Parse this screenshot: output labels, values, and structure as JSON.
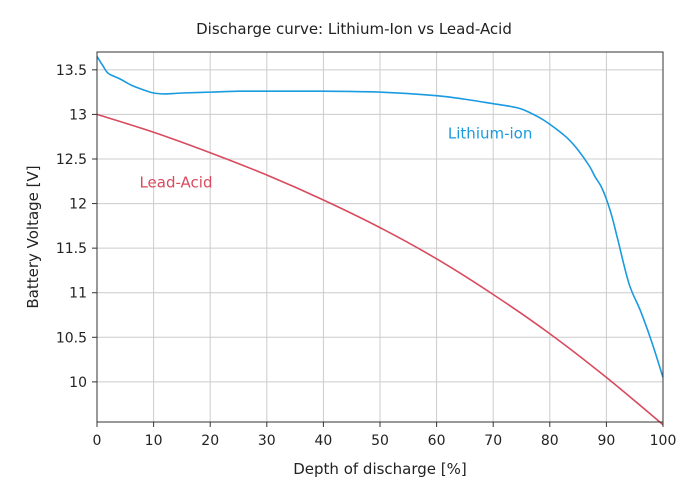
{
  "chart_data": {
    "type": "line",
    "title": "Discharge curve: Lithium-Ion vs Lead-Acid",
    "xlabel": "Depth of discharge [%]",
    "ylabel": "Battery Voltage [V]",
    "xlim": [
      0,
      100
    ],
    "ylim": [
      9.55,
      13.7
    ],
    "xticks": [
      0,
      10,
      20,
      30,
      40,
      50,
      60,
      70,
      80,
      90,
      100
    ],
    "xtick_labels": [
      "0",
      "10",
      "20",
      "30",
      "40",
      "50",
      "60",
      "70",
      "80",
      "90",
      "100"
    ],
    "yticks": [
      10,
      10.5,
      11,
      11.5,
      12,
      12.5,
      13,
      13.5
    ],
    "ytick_labels": [
      "10",
      "10.5",
      "11",
      "11.5",
      "12",
      "12.5",
      "13",
      "13.5"
    ],
    "grid": true,
    "series": [
      {
        "name": "Lithium-ion",
        "color": "#1a9ae0",
        "x": [
          0,
          1,
          2,
          4,
          6,
          8,
          10,
          12,
          15,
          20,
          25,
          30,
          35,
          40,
          50,
          60,
          65,
          70,
          73,
          75,
          78,
          80,
          83,
          85,
          87,
          88,
          89,
          90,
          91,
          92,
          94,
          96,
          98,
          100
        ],
        "y": [
          13.65,
          13.55,
          13.46,
          13.4,
          13.33,
          13.28,
          13.24,
          13.23,
          13.24,
          13.25,
          13.26,
          13.26,
          13.26,
          13.26,
          13.25,
          13.21,
          13.17,
          13.12,
          13.09,
          13.06,
          12.97,
          12.89,
          12.74,
          12.6,
          12.42,
          12.3,
          12.2,
          12.05,
          11.85,
          11.6,
          11.1,
          10.8,
          10.45,
          10.05
        ]
      },
      {
        "name": "Lead-Acid",
        "color": "#d94a5e",
        "x": [
          0,
          10,
          20,
          30,
          40,
          50,
          60,
          70,
          80,
          90,
          100
        ],
        "y": [
          13.0,
          12.8,
          12.57,
          12.32,
          12.04,
          11.73,
          11.38,
          10.98,
          10.54,
          10.05,
          9.52
        ]
      }
    ],
    "annotations": [
      {
        "text": "Lithium-ion",
        "series": "Lithium-ion",
        "x": 62,
        "y": 12.73
      },
      {
        "text": "Lead-Acid",
        "series": "Lead-Acid",
        "x": 7.5,
        "y": 12.18
      }
    ]
  }
}
